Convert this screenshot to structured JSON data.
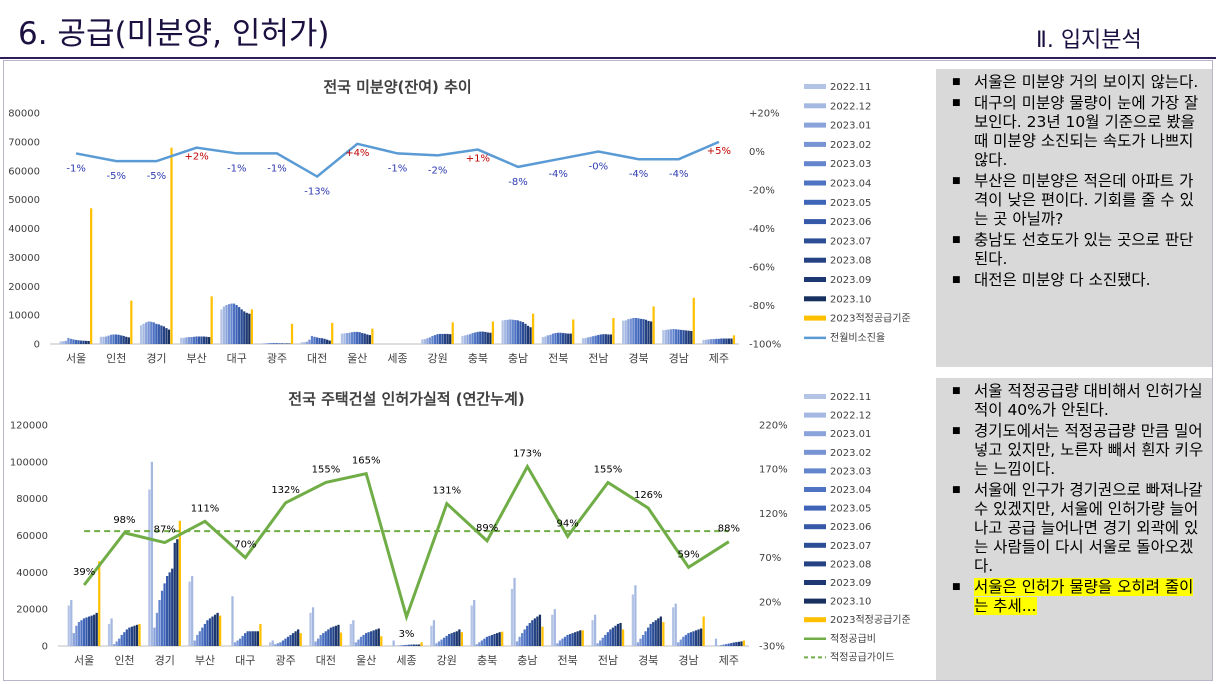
{
  "header": {
    "title": "6. 공급(미분양, 인허가)",
    "section": "Ⅱ. 입지분석"
  },
  "colors": {
    "series": [
      "#b4c4e6",
      "#a5b8e2",
      "#8aa3db",
      "#7894d4",
      "#6385cd",
      "#4e73c3",
      "#3f65b8",
      "#3559a8",
      "#2c4e97",
      "#244284",
      "#1d3872",
      "#17305f"
    ],
    "standard": "#ffc000",
    "ratio_line1": "#5b9bd5",
    "ratio_line2": "#70ad47",
    "guide": "#70ad47",
    "pos_label": "#c00000",
    "neg_label": "#2e3bb0",
    "note_bg": "#d9d9d9",
    "highlight": "#ffff00"
  },
  "legend_periods": [
    "2022.11",
    "2022.12",
    "2023.01",
    "2023.02",
    "2023.03",
    "2023.04",
    "2023.05",
    "2023.06",
    "2023.07",
    "2023.08",
    "2023.09",
    "2023.10"
  ],
  "chart_data": [
    {
      "type": "bar",
      "title": "전국 미분양(잔여) 추이",
      "categories": [
        "서울",
        "인천",
        "경기",
        "부산",
        "대구",
        "광주",
        "대전",
        "울산",
        "세종",
        "강원",
        "충북",
        "충남",
        "전북",
        "전남",
        "경북",
        "경남",
        "제주"
      ],
      "ylim": [
        0,
        80000
      ],
      "yticks": [
        "0",
        "10000",
        "20000",
        "30000",
        "40000",
        "50000",
        "60000",
        "70000",
        "80000"
      ],
      "y2lim": [
        -100,
        20
      ],
      "y2ticks": [
        "-100%",
        "-80%",
        "-60%",
        "-40%",
        "-20%",
        "0%",
        "+20%"
      ],
      "series": [
        {
          "name": "2022.11",
          "values": [
            900,
            2500,
            6500,
            2200,
            12000,
            200,
            600,
            3600,
            0,
            1600,
            2800,
            8200,
            2400,
            2000,
            8100,
            4800,
            1400
          ]
        },
        {
          "name": "2022.12",
          "values": [
            950,
            2500,
            7000,
            2100,
            13000,
            250,
            650,
            3700,
            0,
            1700,
            3000,
            8300,
            2600,
            2100,
            8200,
            4900,
            1500
          ]
        },
        {
          "name": "2023.01",
          "values": [
            1100,
            2600,
            7500,
            2300,
            13500,
            300,
            800,
            3800,
            0,
            2000,
            3200,
            8400,
            3000,
            2300,
            8600,
            5000,
            1600
          ]
        },
        {
          "name": "2023.02",
          "values": [
            2100,
            2900,
            7800,
            2400,
            13800,
            350,
            1500,
            3900,
            0,
            2300,
            3400,
            8500,
            3200,
            2500,
            8800,
            5100,
            1700
          ]
        },
        {
          "name": "2023.03",
          "values": [
            1800,
            3200,
            7700,
            2400,
            14000,
            350,
            2800,
            4100,
            0,
            2800,
            3800,
            8400,
            3600,
            2700,
            9000,
            5200,
            1700
          ]
        },
        {
          "name": "2023.04",
          "values": [
            1600,
            3300,
            7500,
            2500,
            14000,
            350,
            2500,
            4200,
            0,
            3100,
            4000,
            8300,
            3800,
            2900,
            9000,
            5100,
            1800
          ]
        },
        {
          "name": "2023.05",
          "values": [
            1400,
            3300,
            7000,
            2600,
            13500,
            300,
            2300,
            4200,
            0,
            3400,
            4200,
            8200,
            3900,
            3100,
            8900,
            5000,
            1800
          ]
        },
        {
          "name": "2023.06",
          "values": [
            1300,
            3200,
            6800,
            2600,
            12800,
            250,
            2100,
            4100,
            0,
            3500,
            4300,
            7900,
            3900,
            3300,
            8700,
            4900,
            1900
          ]
        },
        {
          "name": "2023.07",
          "values": [
            1200,
            3000,
            6400,
            2600,
            12000,
            250,
            2000,
            3800,
            0,
            3500,
            4300,
            7600,
            3800,
            3400,
            8600,
            4800,
            1900
          ]
        },
        {
          "name": "2023.08",
          "values": [
            1150,
            2800,
            6100,
            2600,
            11300,
            200,
            1800,
            3600,
            0,
            3500,
            4200,
            7000,
            3700,
            3400,
            8400,
            4700,
            1900
          ]
        },
        {
          "name": "2023.09",
          "values": [
            1100,
            2500,
            5500,
            2500,
            10800,
            200,
            1500,
            3300,
            0,
            3500,
            4000,
            6300,
            3600,
            3300,
            8000,
            4600,
            1900
          ]
        },
        {
          "name": "2023.10",
          "values": [
            1050,
            2300,
            5000,
            2400,
            10500,
            200,
            1200,
            3100,
            0,
            3400,
            3900,
            5800,
            3600,
            3300,
            7800,
            4500,
            1900
          ]
        },
        {
          "name": "2023적정공급기준",
          "values": [
            47000,
            15000,
            68000,
            16500,
            12000,
            7000,
            7300,
            5300,
            0,
            7500,
            7800,
            10500,
            8500,
            9000,
            13000,
            16000,
            3000
          ]
        }
      ],
      "line": {
        "name": "전월비소진율",
        "values": [
          -1,
          -5,
          -5,
          2,
          -1,
          -1,
          -13,
          4,
          -1,
          -2,
          1,
          -8,
          -4,
          0,
          -4,
          -4,
          5
        ],
        "labels": [
          "-1%",
          "-5%",
          "-5%",
          "+2%",
          "-1%",
          "-1%",
          "-13%",
          "+4%",
          "-1%",
          "-2%",
          "+1%",
          "-8%",
          "-4%",
          "-0%",
          "-4%",
          "-4%",
          "+5%"
        ],
        "pos_y": [
          0,
          0,
          0,
          0,
          0,
          0,
          0,
          0,
          0,
          0,
          0,
          0,
          0,
          0,
          0,
          0,
          0
        ]
      }
    },
    {
      "type": "bar",
      "title": "전국 주택건설 인허가실적 (연간누계)",
      "categories": [
        "서울",
        "인천",
        "경기",
        "부산",
        "대구",
        "광주",
        "대전",
        "울산",
        "세종",
        "강원",
        "충북",
        "충남",
        "전북",
        "전남",
        "경북",
        "경남",
        "제주"
      ],
      "ylim": [
        0,
        120000
      ],
      "yticks": [
        "0",
        "20000",
        "40000",
        "60000",
        "80000",
        "100000",
        "120000"
      ],
      "y2lim": [
        -30,
        220
      ],
      "y2ticks": [
        "-30%",
        "20%",
        "70%",
        "120%",
        "170%",
        "220%"
      ],
      "series": [
        {
          "name": "2022.11",
          "values": [
            22000,
            12000,
            85000,
            35000,
            0,
            2000,
            18000,
            12000,
            0,
            11000,
            22000,
            31000,
            17000,
            14000,
            28000,
            21000,
            0
          ]
        },
        {
          "name": "2022.12",
          "values": [
            25000,
            15000,
            100000,
            38000,
            27000,
            3000,
            21000,
            14000,
            3000,
            14000,
            25000,
            37000,
            20000,
            17000,
            33000,
            23000,
            4000
          ]
        },
        {
          "name": "2023.01",
          "values": [
            7000,
            1000,
            10000,
            3000,
            2000,
            1000,
            2500,
            2000,
            200,
            1500,
            1000,
            2500,
            1500,
            1500,
            2000,
            2000,
            300
          ]
        },
        {
          "name": "2023.02",
          "values": [
            11000,
            2500,
            18000,
            6000,
            3000,
            1500,
            4000,
            3500,
            300,
            2500,
            2000,
            5000,
            3000,
            3000,
            4000,
            3500,
            500
          ]
        },
        {
          "name": "2023.03",
          "values": [
            13000,
            4000,
            25000,
            8000,
            4000,
            2000,
            6000,
            5000,
            400,
            3500,
            3000,
            7000,
            4000,
            4500,
            6000,
            5000,
            800
          ]
        },
        {
          "name": "2023.04",
          "values": [
            14000,
            6000,
            30000,
            10000,
            5500,
            3000,
            7000,
            6000,
            500,
            4500,
            4000,
            9000,
            5000,
            6000,
            8000,
            6000,
            1000
          ]
        },
        {
          "name": "2023.05",
          "values": [
            15000,
            7500,
            34000,
            12000,
            7000,
            4000,
            8000,
            7000,
            600,
            5500,
            5000,
            11000,
            6000,
            7500,
            10000,
            7000,
            1300
          ]
        },
        {
          "name": "2023.06",
          "values": [
            15500,
            9000,
            38000,
            14000,
            8000,
            5000,
            9000,
            7500,
            700,
            6500,
            5500,
            12500,
            6500,
            9000,
            12000,
            7500,
            1600
          ]
        },
        {
          "name": "2023.07",
          "values": [
            16000,
            10000,
            40000,
            15000,
            8000,
            6000,
            10000,
            8000,
            800,
            7000,
            6000,
            14000,
            7000,
            10000,
            13000,
            8000,
            1900
          ]
        },
        {
          "name": "2023.08",
          "values": [
            16500,
            10500,
            42000,
            16000,
            8000,
            7000,
            10500,
            8500,
            800,
            7500,
            6500,
            15000,
            7500,
            11000,
            14000,
            8500,
            2100
          ]
        },
        {
          "name": "2023.09",
          "values": [
            17000,
            11000,
            56000,
            17000,
            8000,
            8000,
            11000,
            9000,
            800,
            8000,
            7000,
            16000,
            8000,
            12000,
            15000,
            9000,
            2300
          ]
        },
        {
          "name": "2023.10",
          "values": [
            18000,
            11500,
            58000,
            18000,
            8000,
            9000,
            11500,
            9500,
            800,
            9000,
            7500,
            17000,
            8500,
            12500,
            16000,
            9500,
            2500
          ]
        },
        {
          "name": "2023적정공급기준",
          "values": [
            46000,
            12000,
            68000,
            16500,
            12000,
            7000,
            7300,
            5300,
            2000,
            7500,
            7800,
            10500,
            8500,
            9000,
            13000,
            16000,
            3000
          ]
        }
      ],
      "line": {
        "name": "적정공급비",
        "values": [
          39,
          98,
          87,
          111,
          70,
          132,
          155,
          165,
          3,
          131,
          89,
          173,
          94,
          155,
          126,
          59,
          88
        ],
        "labels": [
          "39%",
          "98%",
          "87%",
          "111%",
          "70%",
          "132%",
          "155%",
          "165%",
          "3%",
          "131%",
          "89%",
          "173%",
          "94%",
          "155%",
          "126%",
          "59%",
          "88%"
        ]
      },
      "guide": {
        "name": "적정공급가이드",
        "value": 100
      }
    }
  ],
  "notes_top": [
    "서울은 미분양 거의 보이지 않는다.",
    "대구의 미분양 물량이 눈에 가장 잘 보인다. 23년 10월 기준으로 봤을 때 미분양 소진되는 속도가 나쁘지 않다.",
    "부산은 미분양은 적은데 아파트 가격이 낮은 편이다. 기회를 줄 수 있는 곳 아닐까?",
    "충남도 선호도가 있는 곳으로 판단된다.",
    "대전은 미분양 다 소진됐다."
  ],
  "notes_bottom": [
    "서울 적정공급량 대비해서 인허가실적이 40%가 안된다.",
    "경기도에서는 적정공급량 만큼 밀어 넣고 있지만, 노른자 빼서 흰자 키우는 느낌이다.",
    "서울에 인구가 경기권으로 빠져나갈 수 있겠지만, 서울에 인허가량 늘어나고 공급 늘어나면 경기 외곽에 있는 사람들이 다시 서울로 돌아오겠다.",
    "서울은 인허가 물량을 오히려 줄이는 추세..."
  ]
}
